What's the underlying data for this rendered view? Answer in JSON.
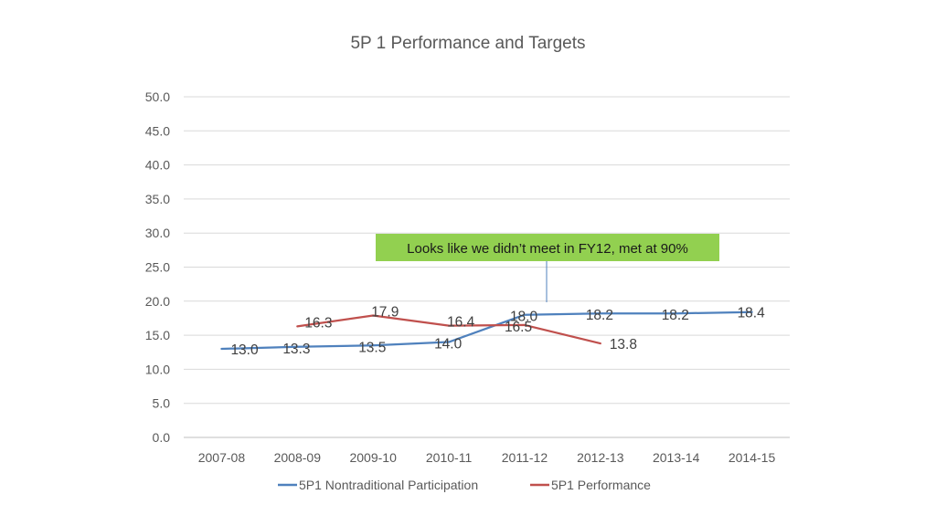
{
  "chart_data": {
    "type": "line",
    "title": "5P 1 Performance and Targets",
    "xlabel": "",
    "ylabel": "",
    "categories": [
      "2007-08",
      "2008-09",
      "2009-10",
      "2010-11",
      "2011-12",
      "2012-13",
      "2013-14",
      "2014-15"
    ],
    "ylim": [
      0,
      50
    ],
    "yticks": [
      "0.0",
      "5.0",
      "10.0",
      "15.0",
      "20.0",
      "25.0",
      "30.0",
      "35.0",
      "40.0",
      "45.0",
      "50.0"
    ],
    "grid": true,
    "legend_position": "bottom",
    "series": [
      {
        "name": "5P1 Nontraditional Participation",
        "color": "#4f81bd",
        "values": [
          13.0,
          13.3,
          13.5,
          14.0,
          18.0,
          18.2,
          18.2,
          18.4
        ],
        "labels": [
          "13.0",
          "13.3",
          "13.5",
          "14.0",
          "18.0",
          "18.2",
          "18.2",
          "18.4"
        ]
      },
      {
        "name": "5P1 Performance",
        "color": "#c0504d",
        "values": [
          null,
          16.3,
          17.9,
          16.4,
          16.5,
          13.8,
          null,
          null
        ],
        "labels": [
          null,
          "16.3",
          "17.9",
          "16.4",
          "16.5",
          "13.8",
          null,
          null
        ]
      }
    ],
    "annotation": {
      "text": "Looks like we didn’t meet in FY12, met at 90%",
      "background": "#92d050"
    }
  }
}
